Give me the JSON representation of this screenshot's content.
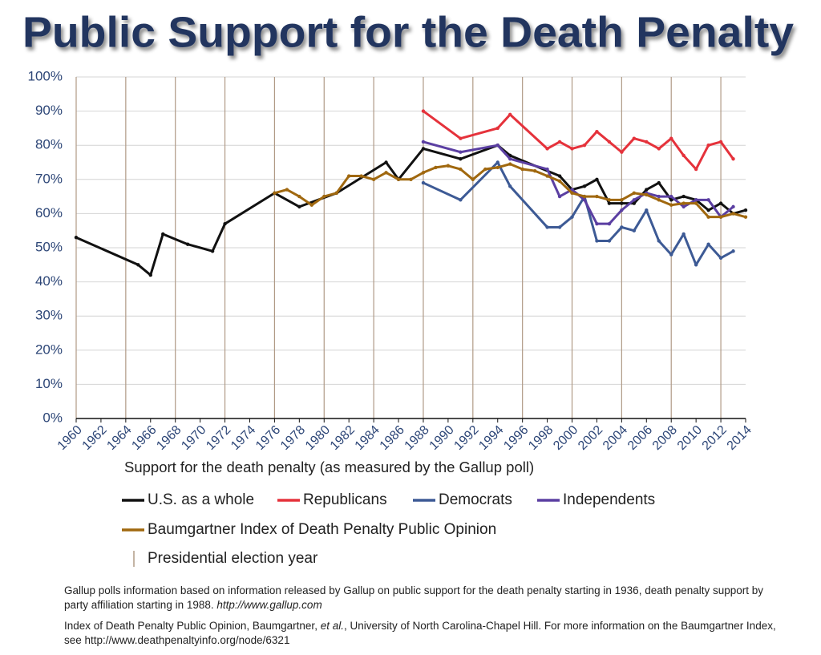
{
  "chart_data": {
    "type": "line",
    "title": "Public Support for the Death Penalty",
    "x_label": "Support for the death penalty (as measured by the Gallup poll)",
    "xlim": [
      1960,
      2014
    ],
    "xticks": [
      1960,
      1962,
      1964,
      1966,
      1968,
      1970,
      1972,
      1974,
      1976,
      1978,
      1980,
      1982,
      1984,
      1986,
      1988,
      1990,
      1992,
      1994,
      1996,
      1998,
      2000,
      2002,
      2004,
      2006,
      2008,
      2010,
      2012,
      2014
    ],
    "ylim": [
      0,
      100
    ],
    "yticks": [
      {
        "value": 0,
        "label": "0%"
      },
      {
        "value": 10,
        "label": "10%"
      },
      {
        "value": 20,
        "label": "20%"
      },
      {
        "value": 30,
        "label": "30%"
      },
      {
        "value": 40,
        "label": "40%"
      },
      {
        "value": 50,
        "label": "50%"
      },
      {
        "value": 60,
        "label": "60%"
      },
      {
        "value": 70,
        "label": "70%"
      },
      {
        "value": 80,
        "label": "80%"
      },
      {
        "value": 90,
        "label": "90%"
      },
      {
        "value": 100,
        "label": "100%"
      }
    ],
    "grid": true,
    "election_years": [
      1960,
      1964,
      1968,
      1972,
      1976,
      1980,
      1984,
      1988,
      1992,
      1996,
      2000,
      2004,
      2008,
      2012
    ],
    "election_color": "#b09a86",
    "election_label": "Presidential election year",
    "series": [
      {
        "name": "U.S. as a whole",
        "color": "#111111",
        "x": [
          1960,
          1965,
          1966,
          1967,
          1969,
          1971,
          1972,
          1976,
          1978,
          1981,
          1985,
          1986,
          1988,
          1991,
          1994,
          1995,
          1999,
          2000,
          2001,
          2002,
          2003,
          2004,
          2005,
          2006,
          2007,
          2008,
          2009,
          2010,
          2011,
          2012,
          2013,
          2014
        ],
        "values": [
          53,
          45,
          42,
          54,
          51,
          49,
          57,
          66,
          62,
          66,
          75,
          70,
          79,
          76,
          80,
          77,
          71,
          67,
          68,
          70,
          63,
          63,
          63,
          67,
          69,
          64,
          65,
          64,
          61,
          63,
          60,
          61
        ]
      },
      {
        "name": "Republicans",
        "color": "#e5323b",
        "x": [
          1988,
          1991,
          1994,
          1995,
          1998,
          1999,
          2000,
          2001,
          2002,
          2003,
          2004,
          2005,
          2006,
          2007,
          2008,
          2009,
          2010,
          2011,
          2012,
          2013
        ],
        "values": [
          90,
          82,
          85,
          89,
          79,
          81,
          79,
          80,
          84,
          81,
          78,
          82,
          81,
          79,
          82,
          77,
          73,
          80,
          81,
          76
        ]
      },
      {
        "name": "Democrats",
        "color": "#3d5a95",
        "x": [
          1988,
          1991,
          1994,
          1995,
          1998,
          1999,
          2000,
          2001,
          2002,
          2003,
          2004,
          2005,
          2006,
          2007,
          2008,
          2009,
          2010,
          2011,
          2012,
          2013
        ],
        "values": [
          69,
          64,
          75,
          68,
          56,
          56,
          59,
          65,
          52,
          52,
          56,
          55,
          61,
          52,
          48,
          54,
          45,
          51,
          47,
          49
        ]
      },
      {
        "name": "Independents",
        "color": "#5b3fa2",
        "x": [
          1988,
          1991,
          1994,
          1995,
          1998,
          1999,
          2000,
          2001,
          2002,
          2003,
          2004,
          2005,
          2006,
          2007,
          2008,
          2009,
          2010,
          2011,
          2012,
          2013
        ],
        "values": [
          81,
          78,
          80,
          76,
          73,
          65,
          67,
          64,
          57,
          57,
          61,
          64,
          66,
          65,
          65,
          62,
          64,
          64,
          59,
          62
        ]
      },
      {
        "name": "Baumgartner Index of Death Penalty Public Opinion",
        "color": "#a0680f",
        "x": [
          1976,
          1977,
          1978,
          1979,
          1980,
          1981,
          1982,
          1983,
          1984,
          1985,
          1986,
          1987,
          1988,
          1989,
          1990,
          1991,
          1992,
          1993,
          1994,
          1995,
          1996,
          1997,
          1998,
          1999,
          2000,
          2001,
          2002,
          2003,
          2004,
          2005,
          2006,
          2007,
          2008,
          2009,
          2010,
          2011,
          2012,
          2013,
          2014
        ],
        "values": [
          66,
          67,
          65,
          62.5,
          65,
          66,
          71,
          71,
          70,
          72,
          70,
          70,
          72,
          73.5,
          74,
          73,
          70,
          73,
          73.5,
          74.5,
          73,
          72.5,
          71,
          69.5,
          66,
          65,
          65,
          64,
          64,
          66,
          65.5,
          64,
          62.5,
          63,
          63,
          59,
          59,
          60,
          59
        ]
      }
    ],
    "notes": [
      [
        "Gallup polls information based on information released by Gallup  on public support for the death penalty starting in 1936, death penalty support by party affiliation starting in 1988. ",
        "http://www.gallup.com"
      ],
      [
        "Index of Death Penalty Public Opinion, Baumgartner, ",
        "et al.",
        ", University of North Carolina-Chapel Hill. For more information on the Baumgartner Index, see http://www.deathpenaltyinfo.org/node/6321"
      ]
    ]
  }
}
